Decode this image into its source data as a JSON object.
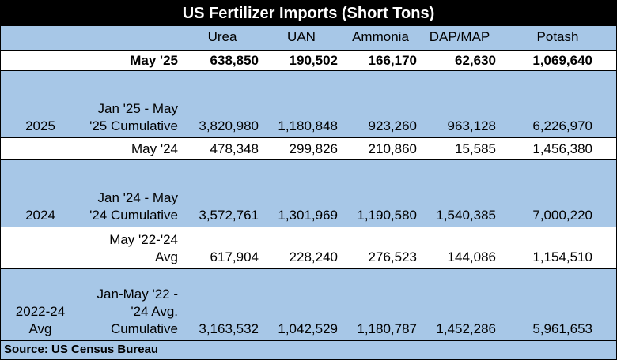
{
  "title": "US Fertilizer Imports (Short Tons)",
  "columns": [
    "Urea",
    "UAN",
    "Ammonia",
    "DAP/MAP",
    "Potash"
  ],
  "rows": [
    {
      "group": "",
      "label_lines": [
        "May '25"
      ],
      "values": [
        "638,850",
        "190,502",
        "166,170",
        "62,630",
        "1,069,640"
      ]
    },
    {
      "group": "2025",
      "label_lines": [
        "Jan '25 - May",
        "'25 Cumulative"
      ],
      "values": [
        "3,820,980",
        "1,180,848",
        "923,260",
        "963,128",
        "6,226,970"
      ]
    },
    {
      "group": "",
      "label_lines": [
        "May '24"
      ],
      "values": [
        "478,348",
        "299,826",
        "210,860",
        "15,585",
        "1,456,380"
      ]
    },
    {
      "group": "2024",
      "label_lines": [
        "Jan '24 - May",
        "'24 Cumulative"
      ],
      "values": [
        "3,572,761",
        "1,301,969",
        "1,190,580",
        "1,540,385",
        "7,000,220"
      ]
    },
    {
      "group": "",
      "label_lines": [
        "May '22-'24",
        "Avg"
      ],
      "values": [
        "617,904",
        "228,240",
        "276,523",
        "144,086",
        "1,154,510"
      ]
    },
    {
      "group_lines": [
        "2022-24",
        "Avg"
      ],
      "label_lines": [
        "Jan-May '22 -",
        "'24 Avg.",
        "Cumulative"
      ],
      "values": [
        "3,163,532",
        "1,042,529",
        "1,180,787",
        "1,452,286",
        "5,961,653"
      ]
    }
  ],
  "source": "Source: US Census Bureau"
}
